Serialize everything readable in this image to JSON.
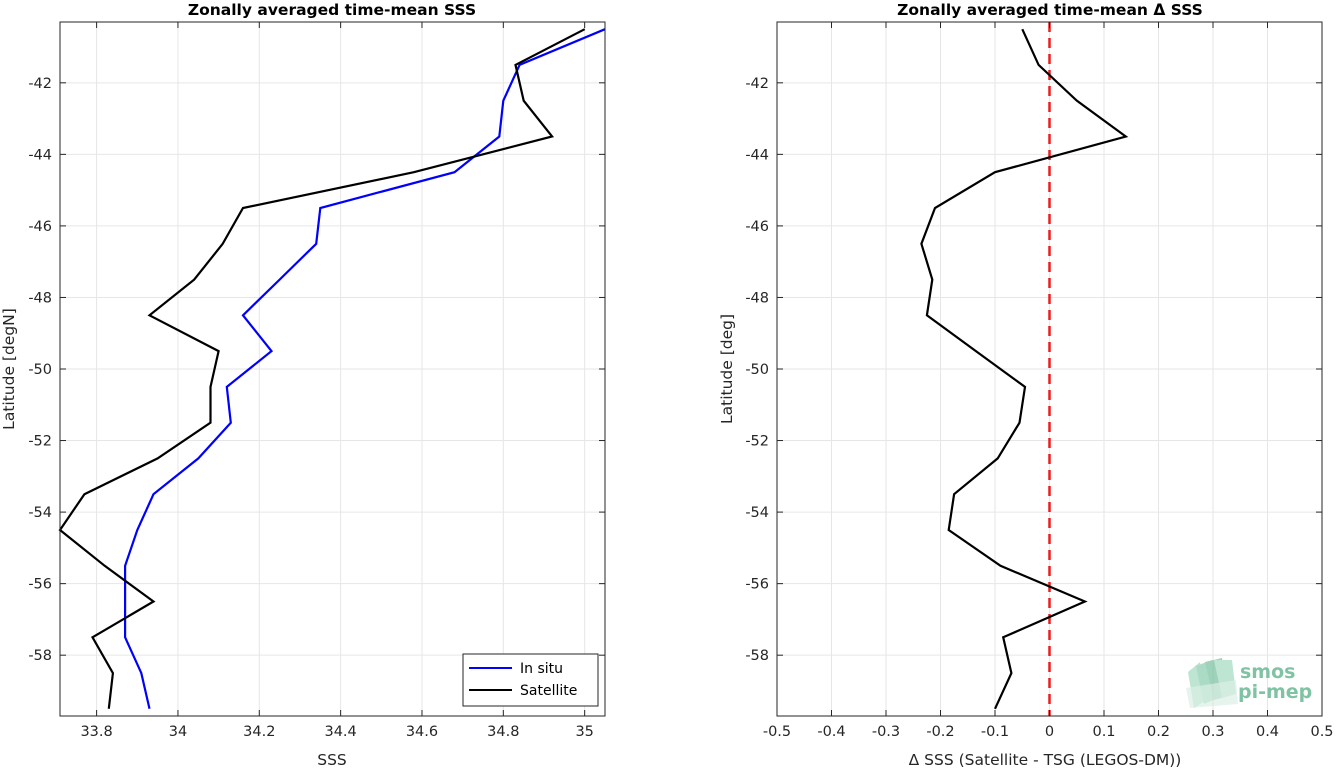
{
  "chart_data": [
    {
      "type": "line",
      "title": "Zonally averaged time-mean SSS",
      "xlabel": "SSS",
      "ylabel": "Latitude [degN]",
      "xlim": [
        33.71,
        35.05
      ],
      "ylim": [
        -59.7,
        -40.3
      ],
      "xticks": [
        33.8,
        34,
        34.2,
        34.4,
        34.6,
        34.8,
        35
      ],
      "xtick_labels": [
        "33.8",
        "34",
        "34.2",
        "34.4",
        "34.6",
        "34.8",
        "35"
      ],
      "yticks": [
        -42,
        -44,
        -46,
        -48,
        -50,
        -52,
        -54,
        -56,
        -58
      ],
      "ytick_labels": [
        "-42",
        "-44",
        "-46",
        "-48",
        "-50",
        "-52",
        "-54",
        "-56",
        "-58"
      ],
      "grid": true,
      "legend": "bottom-right",
      "series": [
        {
          "name": "In situ",
          "color": "#0000ff",
          "points": [
            [
              35.05,
              -40.5
            ],
            [
              34.84,
              -41.5
            ],
            [
              34.8,
              -42.5
            ],
            [
              34.79,
              -43.5
            ],
            [
              34.68,
              -44.5
            ],
            [
              34.35,
              -45.5
            ],
            [
              34.34,
              -46.5
            ],
            [
              34.25,
              -47.5
            ],
            [
              34.16,
              -48.5
            ],
            [
              34.23,
              -49.5
            ],
            [
              34.12,
              -50.5
            ],
            [
              34.13,
              -51.5
            ],
            [
              34.05,
              -52.5
            ],
            [
              33.94,
              -53.5
            ],
            [
              33.9,
              -54.5
            ],
            [
              33.87,
              -55.5
            ],
            [
              33.87,
              -56.5
            ],
            [
              33.87,
              -57.5
            ],
            [
              33.91,
              -58.5
            ],
            [
              33.93,
              -59.5
            ]
          ]
        },
        {
          "name": "Satellite",
          "color": "#000000",
          "points": [
            [
              35.0,
              -40.5
            ],
            [
              34.83,
              -41.5
            ],
            [
              34.85,
              -42.5
            ],
            [
              34.92,
              -43.5
            ],
            [
              34.58,
              -44.5
            ],
            [
              34.16,
              -45.5
            ],
            [
              34.11,
              -46.5
            ],
            [
              34.04,
              -47.5
            ],
            [
              33.93,
              -48.5
            ],
            [
              34.1,
              -49.5
            ],
            [
              34.08,
              -50.5
            ],
            [
              34.08,
              -51.5
            ],
            [
              33.95,
              -52.5
            ],
            [
              33.77,
              -53.5
            ],
            [
              33.71,
              -54.5
            ],
            [
              33.82,
              -55.5
            ],
            [
              33.94,
              -56.5
            ],
            [
              33.79,
              -57.5
            ],
            [
              33.84,
              -58.5
            ],
            [
              33.83,
              -59.5
            ]
          ]
        }
      ]
    },
    {
      "type": "line",
      "title": "Zonally averaged time-mean Δ SSS",
      "xlabel": "Δ SSS (Satellite - TSG (LEGOS-DM))",
      "ylabel": "Latitude [deg]",
      "xlim": [
        -0.5,
        0.5
      ],
      "ylim": [
        -59.7,
        -40.3
      ],
      "xticks": [
        -0.5,
        -0.4,
        -0.3,
        -0.2,
        -0.1,
        0,
        0.1,
        0.2,
        0.3,
        0.4,
        0.5
      ],
      "xtick_labels": [
        "-0.5",
        "-0.4",
        "-0.3",
        "-0.2",
        "-0.1",
        "0",
        "0.1",
        "0.2",
        "0.3",
        "0.4",
        "0.5"
      ],
      "yticks": [
        -42,
        -44,
        -46,
        -48,
        -50,
        -52,
        -54,
        -56,
        -58
      ],
      "ytick_labels": [
        "-42",
        "-44",
        "-46",
        "-48",
        "-50",
        "-52",
        "-54",
        "-56",
        "-58"
      ],
      "grid": true,
      "reference_line": {
        "x": 0,
        "color": "#ee1c1c",
        "style": "dashed"
      },
      "series": [
        {
          "color": "#000000",
          "points": [
            [
              -0.05,
              -40.5
            ],
            [
              -0.02,
              -41.5
            ],
            [
              0.05,
              -42.5
            ],
            [
              0.14,
              -43.5
            ],
            [
              -0.1,
              -44.5
            ],
            [
              -0.21,
              -45.5
            ],
            [
              -0.235,
              -46.5
            ],
            [
              -0.215,
              -47.5
            ],
            [
              -0.225,
              -48.5
            ],
            [
              -0.135,
              -49.5
            ],
            [
              -0.045,
              -50.5
            ],
            [
              -0.055,
              -51.5
            ],
            [
              -0.095,
              -52.5
            ],
            [
              -0.175,
              -53.5
            ],
            [
              -0.185,
              -54.5
            ],
            [
              -0.09,
              -55.5
            ],
            [
              0.065,
              -56.5
            ],
            [
              -0.085,
              -57.5
            ],
            [
              -0.07,
              -58.5
            ],
            [
              -0.1,
              -59.5
            ]
          ]
        }
      ]
    }
  ],
  "logo": {
    "line1": "smos",
    "line2": "pi-mep",
    "color": "#7fc3a4"
  }
}
